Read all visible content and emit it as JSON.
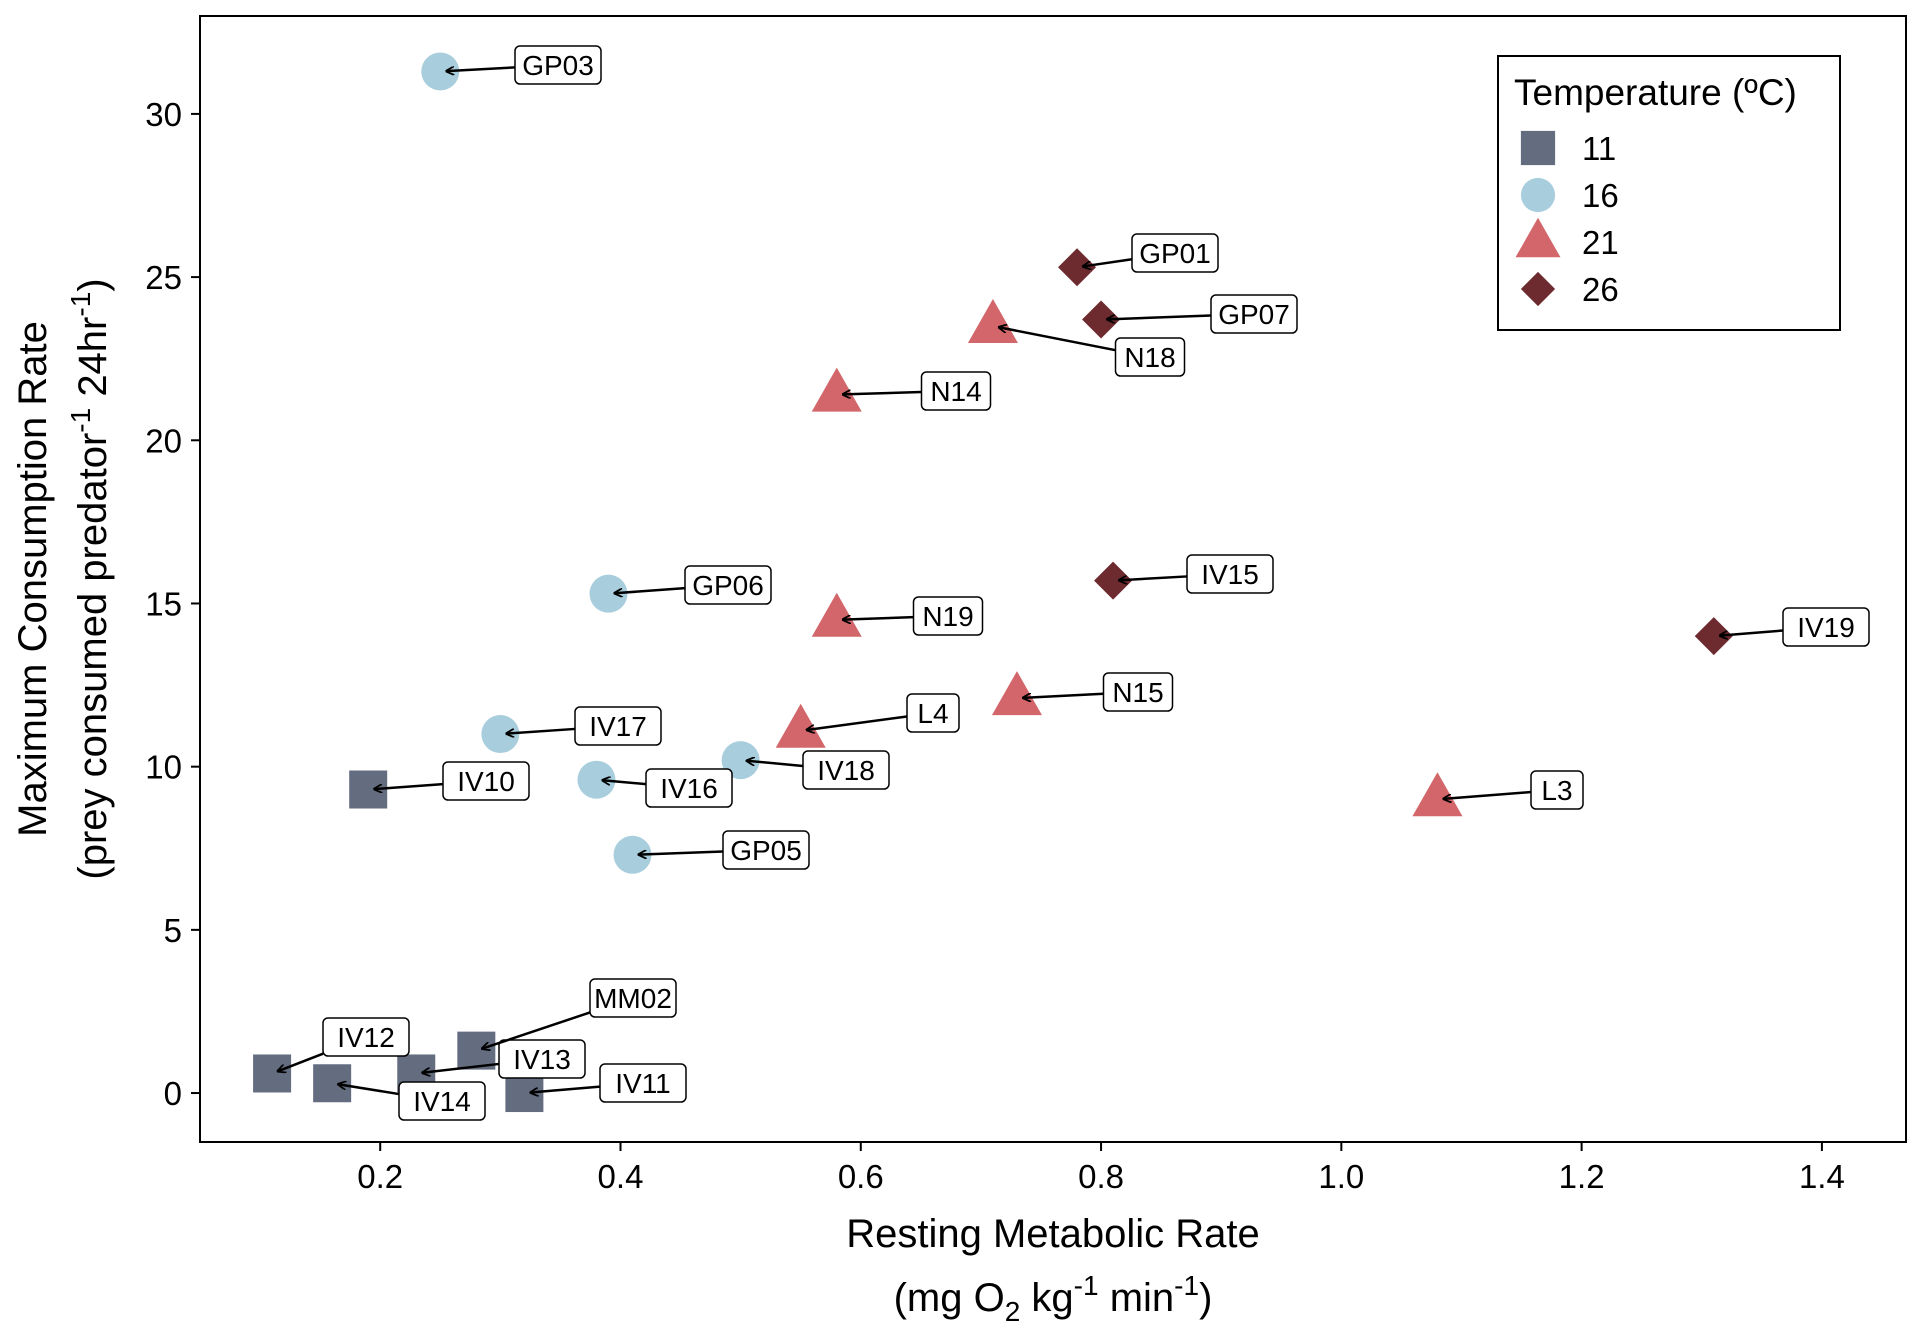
{
  "chart_data": {
    "type": "scatter",
    "xlabel": {
      "line1": "Resting Metabolic Rate",
      "line2": {
        "prefix": "(mg O",
        "sub": "2",
        "mid": " kg",
        "sup1": "-1",
        "mid2": " min",
        "sup2": "-1",
        "suffix": ")"
      }
    },
    "ylabel": {
      "line1": "Maximum Consumption Rate",
      "line2": {
        "prefix": "(prey consumed predator",
        "sup1": "-1",
        "mid": " 24hr",
        "sup2": "-1",
        "suffix": ")"
      }
    },
    "xlim": [
      0.05,
      1.47
    ],
    "ylim": [
      -1.5,
      33
    ],
    "xticks": [
      0.2,
      0.4,
      0.6,
      0.8,
      1.0,
      1.2,
      1.4
    ],
    "xtick_labels": [
      "0.2",
      "0.4",
      "0.6",
      "0.8",
      "1.0",
      "1.2",
      "1.4"
    ],
    "yticks": [
      0,
      5,
      10,
      15,
      20,
      25,
      30
    ],
    "ytick_labels": [
      "0",
      "5",
      "10",
      "15",
      "20",
      "25",
      "30"
    ],
    "grid": false,
    "legend": {
      "title": "Temperature (ºC)",
      "position": "top-right",
      "entries": [
        {
          "label": "11",
          "shape": "square",
          "color": "#646c80"
        },
        {
          "label": "16",
          "shape": "circle",
          "color": "#a8cedd"
        },
        {
          "label": "21",
          "shape": "triangle",
          "color": "#d2666a"
        },
        {
          "label": "26",
          "shape": "diamond",
          "color": "#6d2a2f"
        }
      ]
    },
    "series": [
      {
        "name": "11",
        "points": [
          {
            "id": "IV10",
            "x": 0.19,
            "y": 9.3
          },
          {
            "id": "IV12",
            "x": 0.11,
            "y": 0.6
          },
          {
            "id": "IV14",
            "x": 0.16,
            "y": 0.3
          },
          {
            "id": "IV13",
            "x": 0.23,
            "y": 0.6
          },
          {
            "id": "MM02",
            "x": 0.28,
            "y": 1.3
          },
          {
            "id": "IV11",
            "x": 0.32,
            "y": 0.0
          }
        ]
      },
      {
        "name": "16",
        "points": [
          {
            "id": "GP03",
            "x": 0.25,
            "y": 31.3
          },
          {
            "id": "GP06",
            "x": 0.39,
            "y": 15.3
          },
          {
            "id": "IV17",
            "x": 0.3,
            "y": 11.0
          },
          {
            "id": "IV16",
            "x": 0.38,
            "y": 9.6
          },
          {
            "id": "IV18",
            "x": 0.5,
            "y": 10.2
          },
          {
            "id": "GP05",
            "x": 0.41,
            "y": 7.3
          }
        ]
      },
      {
        "name": "21",
        "points": [
          {
            "id": "N18",
            "x": 0.71,
            "y": 23.5
          },
          {
            "id": "N14",
            "x": 0.58,
            "y": 21.4
          },
          {
            "id": "N19",
            "x": 0.58,
            "y": 14.5
          },
          {
            "id": "L4",
            "x": 0.55,
            "y": 11.1
          },
          {
            "id": "N15",
            "x": 0.73,
            "y": 12.1
          },
          {
            "id": "L3",
            "x": 1.08,
            "y": 9.0
          }
        ]
      },
      {
        "name": "26",
        "points": [
          {
            "id": "GP01",
            "x": 0.78,
            "y": 25.3
          },
          {
            "id": "GP07",
            "x": 0.8,
            "y": 23.7
          },
          {
            "id": "IV15",
            "x": 0.81,
            "y": 15.7
          },
          {
            "id": "IV19",
            "x": 1.31,
            "y": 14.0
          }
        ]
      }
    ]
  }
}
